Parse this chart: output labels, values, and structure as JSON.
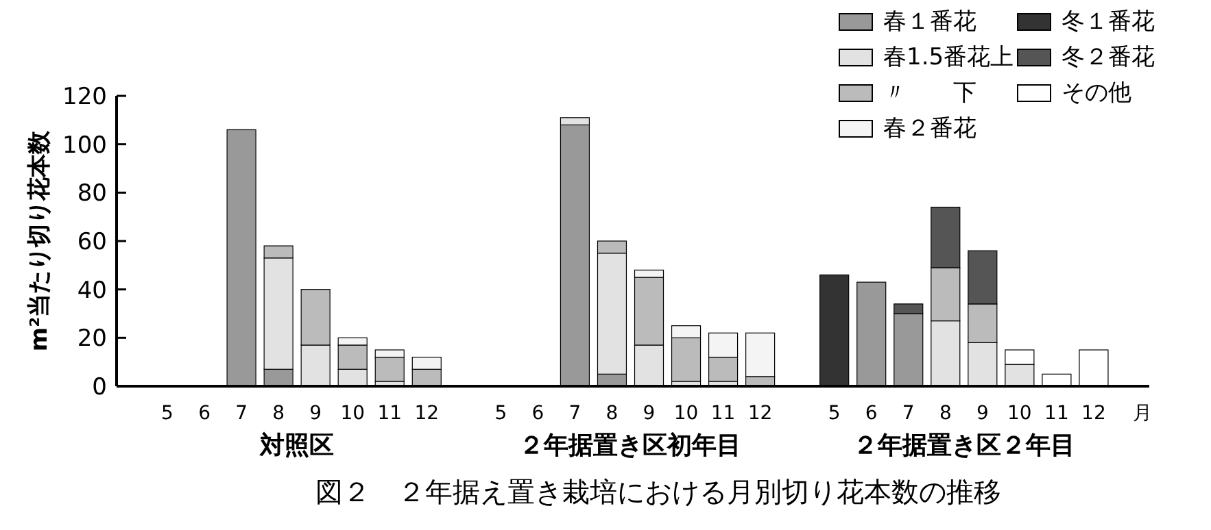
{
  "chart_data": {
    "type": "bar",
    "stacked": true,
    "title": "図２　２年据え置き栽培における月別切り花本数の推移",
    "ylabel": "m²当たり切り花本数",
    "xlabel": "月",
    "annotations": [
      "対照区",
      "２年据置き区初年目",
      "２年据置き区２年目"
    ],
    "categories": [
      "5",
      "6",
      "7",
      "8",
      "9",
      "10",
      "11",
      "12",
      null,
      "5",
      "6",
      "7",
      "8",
      "9",
      "10",
      "11",
      "12",
      null,
      "5",
      "6",
      "7",
      "8",
      "9",
      "10",
      "11",
      "12"
    ],
    "ylim": [
      0,
      120
    ],
    "yticks": [
      0,
      20,
      40,
      60,
      80,
      100,
      120
    ],
    "grid": false,
    "legend": "top right",
    "series": [
      {
        "name": "春１番花",
        "color": "#999999",
        "values": [
          0,
          0,
          106,
          7,
          0,
          0,
          0,
          0,
          null,
          0,
          0,
          108,
          5,
          0,
          0,
          0,
          0,
          null,
          0,
          43,
          30,
          0,
          0,
          0,
          0,
          0
        ]
      },
      {
        "name": "春1.5番花上",
        "color": "#e2e2e2",
        "values": [
          0,
          0,
          0,
          46,
          17,
          7,
          2,
          0,
          null,
          0,
          0,
          3,
          50,
          17,
          2,
          2,
          0,
          null,
          0,
          0,
          0,
          27,
          18,
          9,
          0,
          0
        ]
      },
      {
        "name": "〃　　下",
        "color": "#bbbbbb",
        "values": [
          0,
          0,
          0,
          5,
          23,
          10,
          10,
          7,
          null,
          0,
          0,
          0,
          5,
          28,
          18,
          10,
          4,
          null,
          0,
          0,
          0,
          22,
          16,
          0,
          0,
          0
        ]
      },
      {
        "name": "春２番花",
        "color": "#f4f4f4",
        "values": [
          0,
          0,
          0,
          0,
          0,
          3,
          3,
          5,
          null,
          0,
          0,
          0,
          0,
          3,
          5,
          10,
          18,
          null,
          0,
          0,
          0,
          0,
          0,
          0,
          0,
          0
        ]
      },
      {
        "name": "冬１番花",
        "color": "#333333",
        "values": [
          0,
          0,
          0,
          0,
          0,
          0,
          0,
          0,
          null,
          0,
          0,
          0,
          0,
          0,
          0,
          0,
          0,
          null,
          46,
          0,
          0,
          0,
          0,
          0,
          0,
          0
        ]
      },
      {
        "name": "冬２番花",
        "color": "#555555",
        "values": [
          0,
          0,
          0,
          0,
          0,
          0,
          0,
          0,
          null,
          0,
          0,
          0,
          0,
          0,
          0,
          0,
          0,
          null,
          0,
          0,
          4,
          25,
          22,
          0,
          0,
          0
        ]
      },
      {
        "name": "その他",
        "color": "#ffffff",
        "values": [
          0,
          0,
          0,
          0,
          0,
          0,
          0,
          0,
          null,
          0,
          0,
          0,
          0,
          0,
          0,
          0,
          0,
          null,
          0,
          0,
          0,
          0,
          0,
          6,
          5,
          15
        ]
      }
    ]
  }
}
